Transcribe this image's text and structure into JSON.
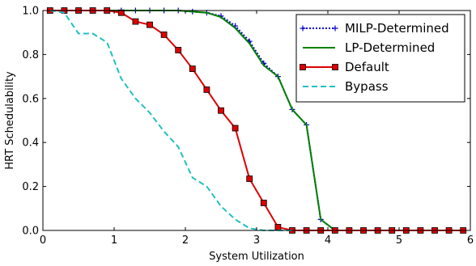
{
  "chart_data": {
    "type": "line",
    "title": "",
    "xlabel": "System Utilization",
    "ylabel": "HRT Schedulability",
    "xlim": [
      0,
      6
    ],
    "ylim": [
      0,
      1.0
    ],
    "xticks": [
      0,
      1,
      2,
      3,
      4,
      5,
      6
    ],
    "yticks": [
      0.0,
      0.2,
      0.4,
      0.6,
      0.8,
      1.0
    ],
    "xtick_labels": [
      "0",
      "1",
      "2",
      "3",
      "4",
      "5",
      "6"
    ],
    "ytick_labels": [
      "0.0",
      "0.2",
      "0.4",
      "0.6",
      "0.8",
      "1.0"
    ],
    "legend_position": "top-right",
    "grid": false,
    "series": [
      {
        "name": "MILP-Determined",
        "color": "#0000cc",
        "style": "dotted",
        "marker": "plus",
        "x": [
          0.1,
          0.3,
          0.5,
          0.7,
          0.9,
          1.1,
          1.3,
          1.5,
          1.7,
          1.9,
          2.1,
          2.3,
          2.5,
          2.7,
          2.9,
          3.1,
          3.3,
          3.5,
          3.7,
          3.9,
          4.1,
          4.3,
          4.5,
          4.7,
          4.9,
          5.1,
          5.3,
          5.5,
          5.7,
          5.9
        ],
        "values": [
          1.0,
          1.0,
          1.0,
          1.0,
          1.0,
          1.0,
          1.0,
          1.0,
          1.0,
          1.0,
          0.995,
          0.99,
          0.975,
          0.93,
          0.86,
          0.76,
          0.7,
          0.55,
          0.48,
          0.05,
          0.0,
          0.0,
          0.0,
          0.0,
          0.0,
          0.0,
          0.0,
          0.0,
          0.0,
          0.0
        ]
      },
      {
        "name": "LP-Determined",
        "color": "#008000",
        "style": "solid",
        "marker": "none",
        "x": [
          0.1,
          0.3,
          0.5,
          0.7,
          0.9,
          1.1,
          1.3,
          1.5,
          1.7,
          1.9,
          2.1,
          2.3,
          2.5,
          2.7,
          2.9,
          3.1,
          3.3,
          3.5,
          3.7,
          3.9,
          4.1,
          4.3,
          4.5,
          4.7,
          4.9,
          5.1,
          5.3,
          5.5,
          5.7,
          5.9
        ],
        "values": [
          1.0,
          1.0,
          1.0,
          1.0,
          1.0,
          1.0,
          1.0,
          1.0,
          1.0,
          1.0,
          0.995,
          0.99,
          0.97,
          0.92,
          0.85,
          0.75,
          0.7,
          0.55,
          0.48,
          0.05,
          0.0,
          0.0,
          0.0,
          0.0,
          0.0,
          0.0,
          0.0,
          0.0,
          0.0,
          0.0
        ]
      },
      {
        "name": "Default",
        "color": "#dd0000",
        "style": "solid",
        "marker": "square",
        "x": [
          0.1,
          0.3,
          0.5,
          0.7,
          0.9,
          1.1,
          1.3,
          1.5,
          1.7,
          1.9,
          2.1,
          2.3,
          2.5,
          2.7,
          2.9,
          3.1,
          3.3,
          3.5,
          3.7,
          3.9,
          4.1,
          4.3,
          4.5,
          4.7,
          4.9,
          5.1,
          5.3,
          5.5,
          5.7,
          5.9
        ],
        "values": [
          1.0,
          1.0,
          1.0,
          1.0,
          1.0,
          0.99,
          0.95,
          0.935,
          0.89,
          0.82,
          0.735,
          0.64,
          0.545,
          0.465,
          0.235,
          0.125,
          0.015,
          0.0,
          0.0,
          0.0,
          0.0,
          0.0,
          0.0,
          0.0,
          0.0,
          0.0,
          0.0,
          0.0,
          0.0,
          0.0
        ]
      },
      {
        "name": "Bypass",
        "color": "#20c0c0",
        "style": "dashed",
        "marker": "none",
        "x": [
          0.1,
          0.3,
          0.5,
          0.7,
          0.9,
          1.1,
          1.3,
          1.5,
          1.7,
          1.9,
          2.1,
          2.3,
          2.5,
          2.7,
          2.9,
          3.1,
          3.3,
          3.5
        ],
        "values": [
          1.0,
          0.99,
          0.895,
          0.895,
          0.855,
          0.69,
          0.6,
          0.535,
          0.45,
          0.38,
          0.24,
          0.2,
          0.11,
          0.05,
          0.01,
          0.0,
          0.0,
          0.0
        ]
      }
    ]
  }
}
